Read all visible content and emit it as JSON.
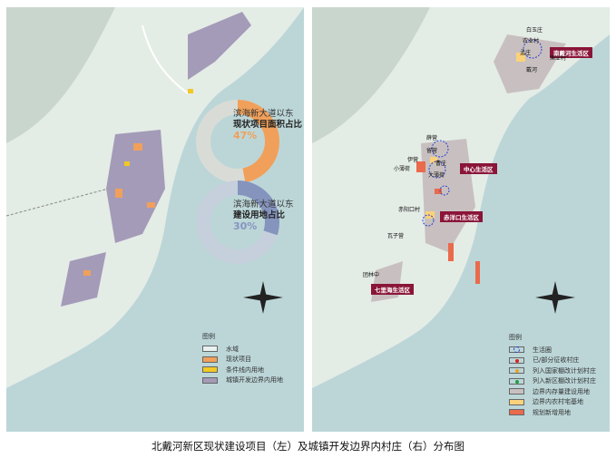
{
  "left_map": {
    "ring1": {
      "line1": "滨海新大道以东",
      "line2": "现状项目面积占比",
      "percent": "47%",
      "value": 0.47,
      "color": "#f0a05a"
    },
    "ring2": {
      "line1": "滨海新大道以东",
      "line2": "建设用地占比",
      "percent": "30%",
      "value": 0.3,
      "color": "#8594bd"
    },
    "legend": {
      "title": "图例",
      "items": [
        {
          "label": "水域",
          "color": "#e8f1ef"
        },
        {
          "label": "现状项目",
          "color": "#f0a05a"
        },
        {
          "label": "条件线内用地",
          "color": "#f2c825"
        },
        {
          "label": "城镇开发边界内用地",
          "color": "#a49bb8"
        }
      ]
    }
  },
  "right_map": {
    "zones": [
      "南戴河生活区",
      "中心生活区",
      "赤洋口生活区",
      "七里海生活区"
    ],
    "villages": [
      "白玉庄",
      "农业村",
      "孟庄",
      "渔业村",
      "戴河",
      "薛营",
      "留营",
      "伊营",
      "小薄荷",
      "曹庄",
      "大薄荷",
      "赤阳口村",
      "瓦子营",
      "团林中"
    ],
    "legend": {
      "title": "图例",
      "items": [
        {
          "label": "生活圈",
          "color": "#2a3fd0",
          "mark": "ring"
        },
        {
          "label": "已/部分征收村庄",
          "color": "#e02020",
          "mark": "dot"
        },
        {
          "label": "列入国家棚改计划村庄",
          "color": "#f0a020",
          "mark": "dot"
        },
        {
          "label": "列入新区棚改计划村庄",
          "color": "#20a040",
          "mark": "dot"
        },
        {
          "label": "边界内存量建设用地",
          "color": "#c8c0c0"
        },
        {
          "label": "边界内农村宅基地",
          "color": "#fbd27a"
        },
        {
          "label": "规划新增用地",
          "color": "#ea6a4c"
        }
      ]
    }
  },
  "caption": "北戴河新区现状建设项目（左）及城镇开发边界内村庄（右）分布图"
}
